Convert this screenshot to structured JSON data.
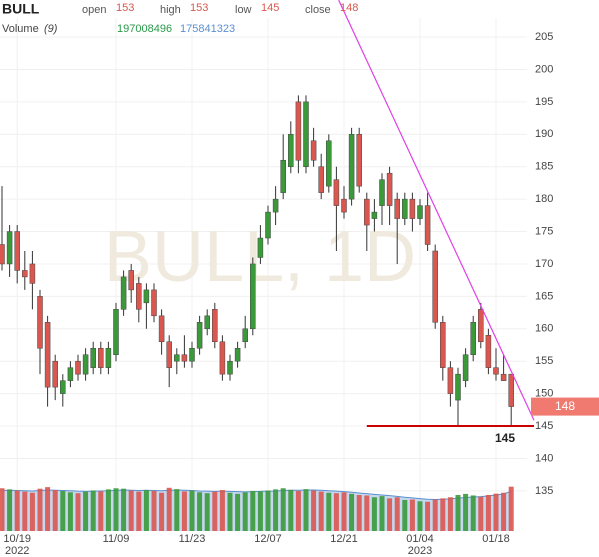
{
  "chart_data": {
    "type": "candlestick",
    "symbol": "BULL",
    "watermark": "BULL, 1D",
    "legend_labels": {
      "open": "open",
      "high": "high",
      "low": "low",
      "close": "close"
    },
    "volume_title": "Volume",
    "volume_ma_period": "(9)",
    "categories": [
      null,
      null,
      "10/19",
      null,
      null,
      null,
      null,
      null,
      null,
      null,
      null,
      null,
      null,
      null,
      null,
      "11/09",
      null,
      null,
      null,
      null,
      null,
      null,
      null,
      null,
      null,
      "11/23",
      null,
      null,
      null,
      null,
      null,
      null,
      null,
      null,
      null,
      "12/07",
      null,
      null,
      null,
      null,
      null,
      null,
      null,
      null,
      null,
      "12/21",
      null,
      null,
      null,
      null,
      null,
      null,
      null,
      null,
      null,
      "01/04",
      null,
      null,
      null,
      null,
      null,
      null,
      null,
      null,
      null,
      "01/18",
      null,
      null
    ],
    "category_years": [
      null,
      null,
      "2022",
      null,
      null,
      null,
      null,
      null,
      null,
      null,
      null,
      null,
      null,
      null,
      null,
      null,
      null,
      null,
      null,
      null,
      null,
      null,
      null,
      null,
      null,
      null,
      null,
      null,
      null,
      null,
      null,
      null,
      null,
      null,
      null,
      null,
      null,
      null,
      null,
      null,
      null,
      null,
      null,
      null,
      null,
      null,
      null,
      null,
      null,
      null,
      null,
      null,
      null,
      null,
      null,
      "2023",
      null,
      null,
      null,
      null,
      null,
      null,
      null,
      null,
      null,
      null,
      null,
      null
    ],
    "open": [
      173,
      170,
      175,
      169,
      170,
      165,
      161,
      155,
      150,
      152,
      155,
      153,
      154,
      157,
      154,
      156,
      163,
      169,
      167,
      164,
      166,
      162,
      158,
      155,
      156,
      155,
      157,
      160,
      163,
      158,
      153,
      155,
      158,
      160,
      171,
      174,
      178,
      181,
      185,
      195,
      185,
      189,
      185,
      182,
      183,
      180,
      180,
      190,
      180,
      177,
      179,
      184,
      180,
      177,
      180,
      177,
      179,
      172,
      161,
      154,
      149,
      152,
      156,
      163,
      159,
      154,
      153,
      153
    ],
    "high": [
      182,
      176,
      176,
      172,
      172,
      166,
      162,
      156,
      153,
      155,
      156,
      157,
      158,
      158,
      158,
      164,
      169,
      170,
      168,
      167,
      167,
      163,
      159,
      157,
      159,
      158,
      162,
      163,
      164,
      159,
      156,
      158,
      162,
      171,
      176,
      179,
      182,
      190,
      192,
      196,
      196,
      191,
      187,
      190,
      185,
      182,
      191,
      191,
      181,
      180,
      184,
      185,
      181,
      181,
      181,
      180,
      181,
      173,
      162,
      155,
      154,
      157,
      162,
      164,
      160,
      157,
      156,
      153
    ],
    "low": [
      169,
      168,
      167,
      166,
      163,
      153,
      148,
      149,
      148,
      151,
      152,
      152,
      153,
      153,
      153,
      155,
      162,
      164,
      161,
      160,
      161,
      156,
      151,
      153,
      154,
      154,
      156,
      159,
      157,
      152,
      152,
      154,
      157,
      159,
      170,
      173,
      176,
      180,
      184,
      184,
      184,
      185,
      180,
      181,
      172,
      177,
      179,
      181,
      172,
      175,
      176,
      176,
      170,
      176,
      175,
      176,
      172,
      160,
      152,
      148,
      145,
      151,
      155,
      157,
      153,
      152,
      152,
      145
    ],
    "close": [
      170,
      175,
      169,
      168,
      167,
      157,
      151,
      151,
      152,
      154,
      153,
      156,
      157,
      154,
      157,
      163,
      168,
      166,
      163,
      166,
      162,
      158,
      154,
      156,
      155,
      157,
      161,
      162,
      158,
      153,
      155,
      157,
      160,
      170,
      174,
      178,
      180,
      186,
      190,
      186,
      195,
      186,
      181,
      189,
      179,
      178,
      190,
      182,
      176,
      178,
      183,
      179,
      177,
      180,
      177,
      179,
      173,
      161,
      154,
      150,
      153,
      156,
      161,
      158,
      154,
      153,
      152,
      148
    ],
    "up_color": "#3a9a3a",
    "down_color": "#d9574f",
    "volume": [
      190000000,
      185000000,
      180000000,
      175000000,
      170000000,
      188000000,
      195000000,
      182000000,
      178000000,
      172000000,
      168000000,
      175000000,
      180000000,
      176000000,
      185000000,
      190000000,
      188000000,
      180000000,
      175000000,
      182000000,
      178000000,
      170000000,
      192000000,
      186000000,
      176000000,
      180000000,
      172000000,
      168000000,
      175000000,
      182000000,
      170000000,
      165000000,
      172000000,
      178000000,
      176000000,
      180000000,
      185000000,
      190000000,
      183000000,
      178000000,
      186000000,
      180000000,
      175000000,
      170000000,
      168000000,
      172000000,
      165000000,
      160000000,
      158000000,
      150000000,
      155000000,
      145000000,
      150000000,
      138000000,
      140000000,
      132000000,
      130000000,
      140000000,
      145000000,
      150000000,
      160000000,
      165000000,
      158000000,
      152000000,
      160000000,
      166000000,
      170000000,
      197008496
    ],
    "volume_ma": [
      180000000,
      181000000,
      180000000,
      179000000,
      178000000,
      180000000,
      182000000,
      181000000,
      180000000,
      179000000,
      177000000,
      176000000,
      177000000,
      178000000,
      179000000,
      181000000,
      182000000,
      181000000,
      180000000,
      181000000,
      180000000,
      179000000,
      181000000,
      182000000,
      181000000,
      180000000,
      178000000,
      177000000,
      176000000,
      177000000,
      176000000,
      175000000,
      174000000,
      175000000,
      176000000,
      177000000,
      178000000,
      180000000,
      181000000,
      181000000,
      182000000,
      182000000,
      181000000,
      179000000,
      177000000,
      175000000,
      172000000,
      169000000,
      166000000,
      163000000,
      160000000,
      157000000,
      154000000,
      150000000,
      147000000,
      144000000,
      141000000,
      140000000,
      141000000,
      143000000,
      146000000,
      149000000,
      151000000,
      153000000,
      156000000,
      160000000,
      165000000,
      175841323
    ],
    "volume_color": "#2a9a4a",
    "volume_ma_color": "#5b8fd0",
    "vlim": [
      0,
      400000000
    ],
    "ylim": [
      131,
      208
    ],
    "yticks": [
      135,
      140,
      145,
      150,
      155,
      160,
      165,
      170,
      175,
      180,
      185,
      190,
      195,
      200,
      205
    ],
    "grid": true,
    "trendline": {
      "color": "#e040e8",
      "x": [
        44.3,
        70
      ],
      "y": [
        210.7,
        145.9
      ]
    },
    "support_line": {
      "value": 145,
      "color": "#cc0000",
      "x": [
        48,
        70
      ]
    }
  }
}
